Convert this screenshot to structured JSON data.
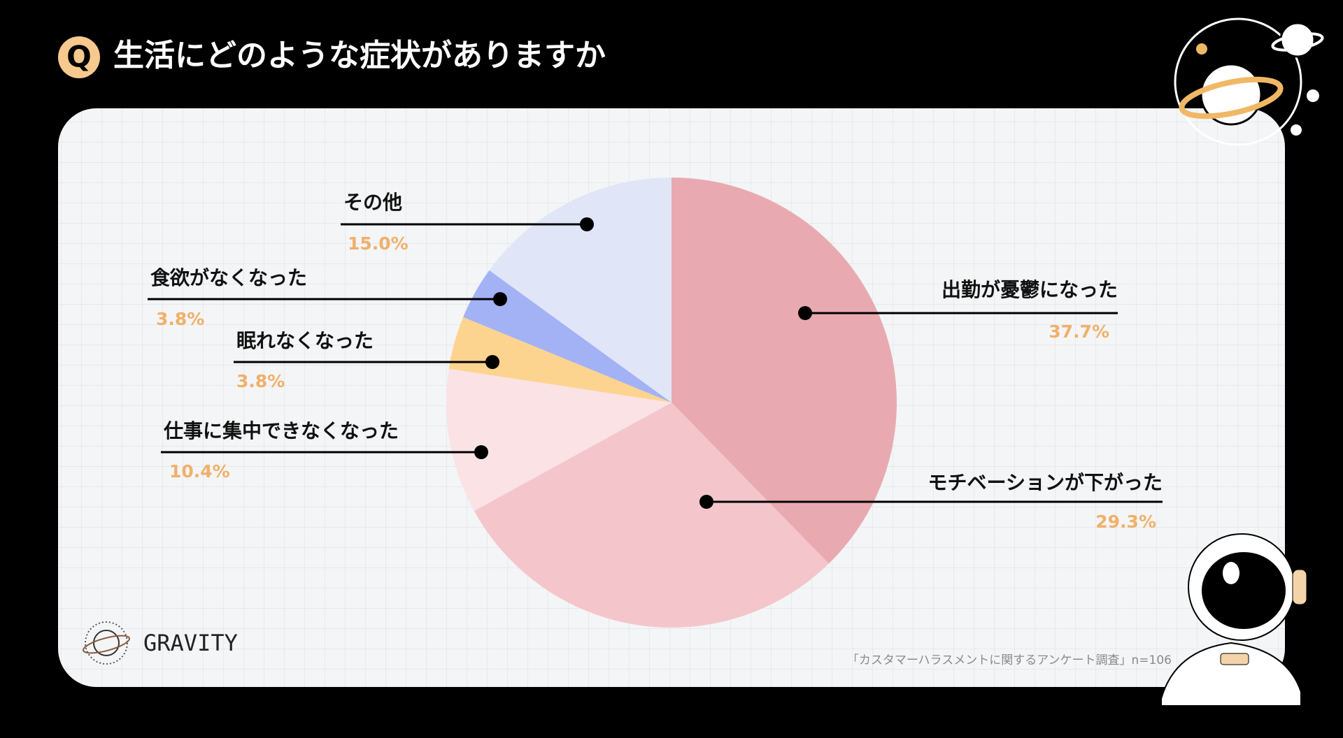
{
  "chart_data": {
    "type": "pie",
    "title": "生活にどのような症状がありますか",
    "badge": "Q",
    "categories": [
      "出勤が憂鬱になった",
      "モチベーションが下がった",
      "仕事に集中できなくなった",
      "眠れなくなった",
      "食欲がなくなった",
      "その他"
    ],
    "values": [
      37.7,
      29.3,
      10.4,
      3.8,
      3.8,
      15.0
    ],
    "value_labels": [
      "37.7%",
      "29.3%",
      "10.4%",
      "3.8%",
      "3.8%",
      "15.0%"
    ],
    "colors": [
      "#e8aab0",
      "#f4c6cb",
      "#fae2e5",
      "#fdd48f",
      "#a3b2f5",
      "#e0e6f7"
    ],
    "source": "「カスタマーハラスメントに関するアンケート調査」n=106",
    "brand": "GRAVITY"
  }
}
